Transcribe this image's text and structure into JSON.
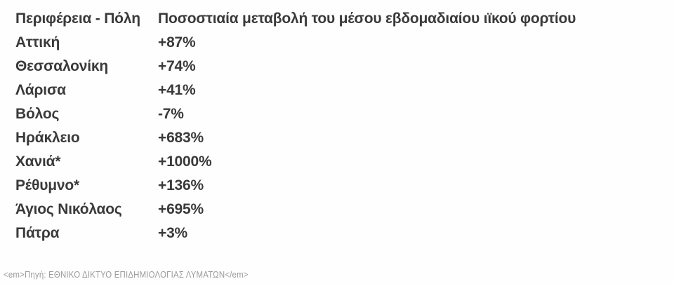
{
  "table": {
    "header": {
      "region_label": "Περιφέρεια - Πόλη",
      "change_label": "Ποσοστιαία μεταβολή του μέσου εβδομαδιαίου ιϊκού φορτίου"
    },
    "rows": [
      {
        "region": "Αττική",
        "change": "+87%"
      },
      {
        "region": "Θεσσαλονίκη",
        "change": "+74%"
      },
      {
        "region": "Λάρισα",
        "change": "+41%"
      },
      {
        "region": "Βόλος",
        "change": "-7%"
      },
      {
        "region": "Ηράκλειο",
        "change": "+683%"
      },
      {
        "region": "Χανιά*",
        "change": "+1000%"
      },
      {
        "region": "Ρέθυμνο*",
        "change": "+136%"
      },
      {
        "region": "Άγιος Νικόλαος",
        "change": "+695%"
      },
      {
        "region": "Πάτρα",
        "change": "+3%"
      }
    ]
  },
  "footer": {
    "source_note": "<em>Πηγή: ΕΘΝΙΚΟ ΔΙΚΤΥΟ ΕΠΙΔΗΜΙΟΛΟΓΙΑΣ ΛΥΜΑΤΩΝ</em>"
  },
  "colors": {
    "text": "#3a3a3a",
    "footer_text": "#9b9b9b",
    "background": "#fefefe"
  },
  "chart_data": {
    "type": "table",
    "title": "",
    "columns": [
      "Περιφέρεια - Πόλη",
      "Ποσοστιαία μεταβολή του μέσου εβδομαδιαίου ιϊκού φορτίου"
    ],
    "categories": [
      "Αττική",
      "Θεσσαλονίκη",
      "Λάρισα",
      "Βόλος",
      "Ηράκλειο",
      "Χανιά*",
      "Ρέθυμνο*",
      "Άγιος Νικόλαος",
      "Πάτρα"
    ],
    "values_percent": [
      87,
      74,
      41,
      -7,
      683,
      1000,
      136,
      695,
      3
    ],
    "annotations": [
      "Πηγή: ΕΘΝΙΚΟ ΔΙΚΤΥΟ ΕΠΙΔΗΜΙΟΛΟΓΙΑΣ ΛΥΜΑΤΩΝ"
    ]
  }
}
